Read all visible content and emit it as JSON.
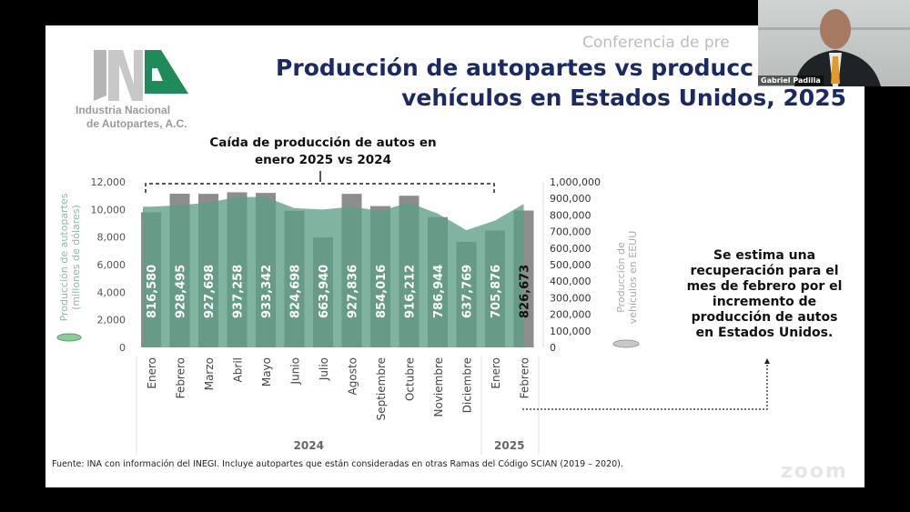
{
  "slide": {
    "header": "Conferencia de pre",
    "title_line1": "Producción de autopartes vs producc",
    "title_line2": "vehículos en Estados Unidos, 2025",
    "logo_line1": "Industria Nacional",
    "logo_line2": "de Autopartes, A.C.",
    "logo_letters": "INA",
    "callout_top": "Caída de producción de autos en enero 2025 vs 2024",
    "callout_right": "Se estima una recuperación para el mes de febrero por el incremento de producción de autos en Estados Unidos.",
    "footer": "Fuente: INA con información del INEGI. Incluye autopartes que están consideradas en otras Ramas del Código SCIAN (2019 – 2020).",
    "watermark": "zoom"
  },
  "video": {
    "participant_name": "Gabriel Padilla"
  },
  "colors": {
    "area": "#5e9e86",
    "bar": "#8d8d8d",
    "bar_label": "#ffffff",
    "title": "#1b2a63"
  },
  "chart_data": {
    "type": "bar",
    "categories": [
      "Enero",
      "Febrero",
      "Marzo",
      "Abril",
      "Mayo",
      "Junio",
      "Julio",
      "Agosto",
      "Septiembre",
      "Octubre",
      "Noviembre",
      "Diciembre",
      "Enero",
      "Febrero"
    ],
    "groups": [
      {
        "label": "2024",
        "count": 12
      },
      {
        "label": "2025",
        "count": 2
      }
    ],
    "series": [
      {
        "name": "Producción de vehículos en EEUU",
        "axis": "right",
        "type": "bar",
        "values": [
          816580,
          928495,
          927698,
          937258,
          933342,
          824698,
          663940,
          927836,
          854016,
          916212,
          786944,
          637769,
          705876,
          826673
        ],
        "labels": [
          "816,580",
          "928,495",
          "927,698",
          "937,258",
          "933,342",
          "824,698",
          "663,940",
          "927,836",
          "854,016",
          "916,212",
          "786,944",
          "637,769",
          "705,876",
          "826,673"
        ]
      },
      {
        "name": "Producción de autopartes (millones de dólares)",
        "axis": "left",
        "type": "area",
        "values": [
          10200,
          10300,
          10500,
          10900,
          10900,
          10100,
          10000,
          10200,
          9900,
          10500,
          9700,
          8500,
          9200,
          10400
        ]
      }
    ],
    "ylabel_left": "Producción de autopartes (millones de dólares)",
    "ylabel_right": "Producción de vehículos en EEUU",
    "ylim_left": [
      0,
      12000
    ],
    "ylim_right": [
      0,
      1000000
    ],
    "yticks_left": [
      "12,000",
      "10,000",
      "8,000",
      "6,000",
      "4,000",
      "2,000",
      "0"
    ],
    "yticks_right": [
      "1,000,000",
      "900,000",
      "800,000",
      "700,000",
      "600,000",
      "500,000",
      "400,000",
      "300,000",
      "200,000",
      "100,000",
      "0"
    ]
  }
}
